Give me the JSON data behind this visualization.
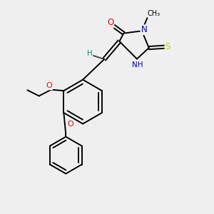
{
  "background_color": "#efefef",
  "bond_color": "#000000",
  "atom_colors": {
    "O": "#ff0000",
    "N": "#0000cd",
    "S": "#cccc00",
    "C": "#000000",
    "H": "#008b8b"
  },
  "figsize": [
    3.0,
    3.0
  ],
  "dpi": 100,
  "lw": 1.4
}
